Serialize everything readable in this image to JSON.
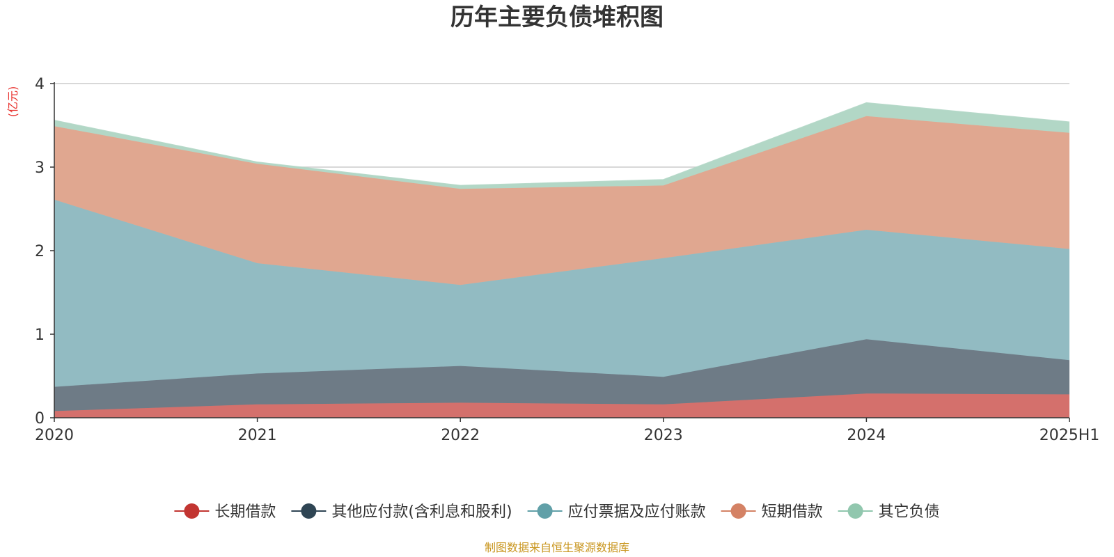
{
  "chart_data": {
    "type": "area",
    "stacked": true,
    "title": "历年主要负债堆积图",
    "ylabel": "(亿元)",
    "xlabel": "",
    "categories": [
      "2020",
      "2021",
      "2022",
      "2023",
      "2024",
      "2025H1"
    ],
    "ylim": [
      0,
      4
    ],
    "yticks": [
      0,
      1,
      2,
      3,
      4
    ],
    "grid": true,
    "legend_position": "bottom",
    "series": [
      {
        "name": "长期借款",
        "color": "#c23531",
        "fill": "#d4706c",
        "values": [
          0.08,
          0.16,
          0.18,
          0.16,
          0.29,
          0.28
        ]
      },
      {
        "name": "其他应付款(含利息和股利)",
        "color": "#2f4554",
        "fill": "#6e7b86",
        "values": [
          0.29,
          0.37,
          0.44,
          0.33,
          0.65,
          0.41
        ]
      },
      {
        "name": "应付票据及应付账款",
        "color": "#61a0a8",
        "fill": "#92bbc2",
        "values": [
          2.24,
          1.32,
          0.97,
          1.42,
          1.31,
          1.33
        ]
      },
      {
        "name": "短期借款",
        "color": "#d48265",
        "fill": "#e0a790",
        "values": [
          0.88,
          1.19,
          1.15,
          0.87,
          1.36,
          1.39
        ]
      },
      {
        "name": "其它负债",
        "color": "#91c7ae",
        "fill": "#b2d7c6",
        "values": [
          0.07,
          0.02,
          0.04,
          0.07,
          0.16,
          0.13
        ]
      }
    ],
    "source": "制图数据来自恒生聚源数据库"
  }
}
